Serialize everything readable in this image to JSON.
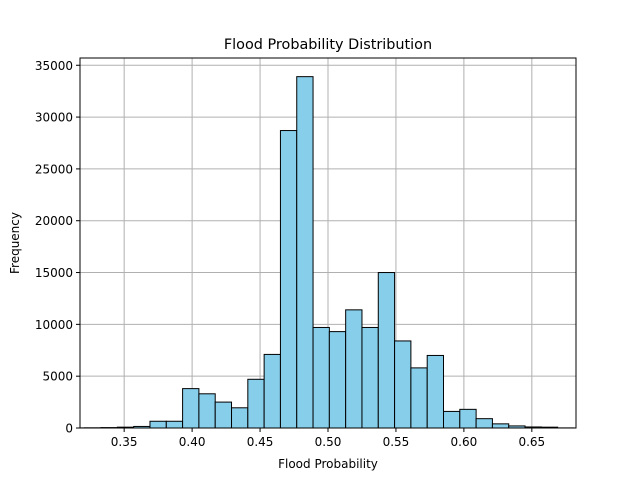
{
  "chart_data": {
    "type": "bar",
    "title": "Flood Probability Distribution",
    "xlabel": "Flood Probability",
    "ylabel": "Frequency",
    "xlim": [
      0.3175,
      0.6825
    ],
    "ylim": [
      0,
      35700
    ],
    "grid": true,
    "colors": {
      "bar_fill": "#87ceeb",
      "bar_edge": "#000000",
      "grid": "#b0b0b0"
    },
    "x_ticks": [
      0.35,
      0.4,
      0.45,
      0.5,
      0.55,
      0.6,
      0.65
    ],
    "x_tick_labels": [
      "0.35",
      "0.40",
      "0.45",
      "0.50",
      "0.55",
      "0.60",
      "0.65"
    ],
    "y_ticks": [
      0,
      5000,
      10000,
      15000,
      20000,
      25000,
      30000,
      35000
    ],
    "y_tick_labels": [
      "0",
      "5000",
      "10000",
      "15000",
      "20000",
      "25000",
      "30000",
      "35000"
    ],
    "bin_edges": [
      0.285,
      0.297,
      0.309,
      0.321,
      0.333,
      0.345,
      0.357,
      0.369,
      0.381,
      0.393,
      0.405,
      0.417,
      0.429,
      0.441,
      0.453,
      0.465,
      0.477,
      0.489,
      0.501,
      0.513,
      0.525,
      0.537,
      0.549,
      0.561,
      0.573,
      0.585,
      0.597,
      0.609,
      0.621,
      0.633,
      0.645,
      0.657,
      0.669,
      0.681
    ],
    "values": [
      0,
      0,
      10,
      20,
      40,
      80,
      150,
      650,
      650,
      3800,
      3300,
      2500,
      1950,
      4700,
      7100,
      28700,
      33900,
      9700,
      9300,
      11400,
      9700,
      15000,
      8400,
      5800,
      7000,
      1600,
      1800,
      900,
      400,
      200,
      100,
      80,
      10
    ]
  }
}
